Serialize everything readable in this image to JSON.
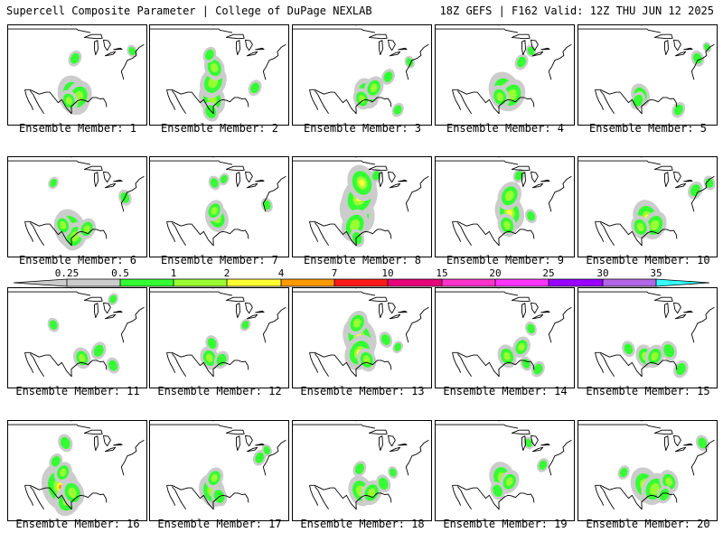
{
  "header": {
    "left": "Supercell Composite Parameter | College of DuPage NEXLAB",
    "right": "18Z GEFS | F162 Valid: 12Z THU JUN 12 2025"
  },
  "legend": {
    "ticks": [
      "0.25",
      "0.5",
      "1",
      "2",
      "4",
      "7",
      "10",
      "15",
      "20",
      "25",
      "30",
      "35"
    ],
    "colors": [
      "#cccccc",
      "#33ff33",
      "#99ff33",
      "#ffff33",
      "#ff9900",
      "#ff1a1a",
      "#e6007a",
      "#ff33cc",
      "#ff33ff",
      "#9900ff",
      "#b366e6",
      "#33ffff"
    ]
  },
  "map_style": {
    "border_color": "#000000",
    "light_color": "#cccccc",
    "low_color": "#33ff33",
    "mid_color": "#99ff33",
    "high_color": "#ffff33",
    "peak_color": "#ff9900"
  },
  "members": [
    {
      "label": "Ensemble Member: 1",
      "blobs": [
        [
          -96.5,
          31,
          2.2
        ],
        [
          -94.5,
          30.5,
          1.8
        ],
        [
          -98.5,
          29.5,
          1.2
        ],
        [
          -96,
          41,
          0.9
        ],
        [
          -72,
          43,
          0.7
        ]
      ]
    },
    {
      "label": "Ensemble Member: 2",
      "blobs": [
        [
          -98,
          30,
          1.8
        ],
        [
          -97.5,
          34.5,
          1.8
        ],
        [
          -97,
          38.5,
          1.4
        ],
        [
          -99,
          42,
          0.9
        ],
        [
          -98.5,
          26.5,
          1.1
        ],
        [
          -80,
          33,
          0.9
        ]
      ]
    },
    {
      "label": "Ensemble Member: 3",
      "blobs": [
        [
          -93,
          31.5,
          1.7
        ],
        [
          -90,
          33,
          1.3
        ],
        [
          -95,
          30,
          1.2
        ],
        [
          -84,
          36,
          0.9
        ],
        [
          -75,
          40,
          0.7
        ],
        [
          -80,
          27,
          0.8
        ]
      ]
    },
    {
      "label": "Ensemble Member: 4",
      "blobs": [
        [
          -95,
          32,
          2.2
        ],
        [
          -92,
          31,
          1.8
        ],
        [
          -97,
          30.5,
          1.3
        ],
        [
          -88,
          40,
          0.9
        ],
        [
          -84,
          43,
          0.7
        ]
      ]
    },
    {
      "label": "Ensemble Member: 5",
      "blobs": [
        [
          -98,
          31,
          1.3
        ],
        [
          -99,
          29.5,
          1.0
        ],
        [
          -74,
          41,
          0.9
        ],
        [
          -82,
          27,
          0.9
        ],
        [
          -70,
          44,
          0.6
        ]
      ]
    },
    {
      "label": "Ensemble Member: 6",
      "blobs": [
        [
          -98,
          30.5,
          2.2
        ],
        [
          -96,
          28.5,
          1.6
        ],
        [
          -101,
          31.5,
          1.2
        ],
        [
          -91,
          30.5,
          1.2
        ],
        [
          -75,
          39,
          0.9
        ],
        [
          -105,
          43,
          0.7
        ]
      ]
    },
    {
      "label": "Ensemble Member: 7",
      "blobs": [
        [
          -96,
          33.5,
          1.6
        ],
        [
          -97,
          35.5,
          1.2
        ],
        [
          -97,
          43,
          0.8
        ],
        [
          -93,
          44,
          0.7
        ],
        [
          -75,
          37,
          0.8
        ]
      ]
    },
    {
      "label": "Ensemble Member: 8",
      "blobs": [
        [
          -97,
          35,
          2.4
        ],
        [
          -96,
          39,
          2.4
        ],
        [
          -95,
          43,
          2.0
        ],
        [
          -98,
          31.5,
          1.8
        ],
        [
          -97,
          28,
          1.0
        ],
        [
          -89,
          45,
          0.8
        ]
      ]
    },
    {
      "label": "Ensemble Member: 9",
      "blobs": [
        [
          -93,
          35,
          2.0
        ],
        [
          -93,
          39.5,
          1.6
        ],
        [
          -94,
          31.5,
          1.3
        ],
        [
          -89,
          45,
          0.8
        ],
        [
          -84,
          34,
          0.8
        ]
      ]
    },
    {
      "label": "Ensemble Member: 10",
      "blobs": [
        [
          -95,
          33.5,
          2.0
        ],
        [
          -92,
          31.5,
          1.6
        ],
        [
          -98,
          31,
          1.3
        ],
        [
          -75,
          41,
          1.0
        ],
        [
          -69,
          43,
          0.8
        ]
      ]
    },
    {
      "label": "Ensemble Member: 11",
      "blobs": [
        [
          -93,
          31,
          1.2
        ],
        [
          -86,
          33,
          1.0
        ],
        [
          -80,
          29,
          0.9
        ],
        [
          -80,
          47,
          0.7
        ],
        [
          -105,
          40,
          0.8
        ]
      ]
    },
    {
      "label": "Ensemble Member: 12",
      "blobs": [
        [
          -99,
          31,
          1.3
        ],
        [
          -94,
          30.5,
          1.0
        ],
        [
          -98,
          35,
          0.9
        ],
        [
          -84,
          40,
          0.7
        ]
      ]
    },
    {
      "label": "Ensemble Member: 13",
      "blobs": [
        [
          -96,
          36.5,
          2.3
        ],
        [
          -96,
          32.5,
          2.0
        ],
        [
          -93,
          30.5,
          1.3
        ],
        [
          -97,
          40.5,
          1.4
        ],
        [
          -85,
          36,
          0.9
        ],
        [
          -80,
          34,
          0.7
        ]
      ]
    },
    {
      "label": "Ensemble Member: 14",
      "blobs": [
        [
          -94,
          31.5,
          1.3
        ],
        [
          -88,
          34,
          1.2
        ],
        [
          -84,
          39,
          0.8
        ],
        [
          -81,
          28,
          0.9
        ],
        [
          -86,
          29.5,
          0.8
        ]
      ]
    },
    {
      "label": "Ensemble Member: 15",
      "blobs": [
        [
          -96,
          31.5,
          1.3
        ],
        [
          -92,
          31.5,
          1.3
        ],
        [
          -86,
          33,
          1.1
        ],
        [
          -81,
          28,
          1.0
        ],
        [
          -103,
          33.5,
          0.9
        ]
      ]
    },
    {
      "label": "Ensemble Member: 16",
      "blobs": [
        [
          -102,
          32,
          2.6
        ],
        [
          -99,
          28.5,
          1.8
        ],
        [
          -97,
          30.5,
          1.6
        ],
        [
          -101,
          36,
          1.2
        ],
        [
          -100,
          44,
          1.0
        ],
        [
          -104,
          39,
          0.9
        ]
      ]
    },
    {
      "label": "Ensemble Member: 17",
      "blobs": [
        [
          -98,
          31,
          1.8
        ],
        [
          -97,
          34.5,
          1.2
        ],
        [
          -95,
          29.5,
          1.1
        ],
        [
          -78,
          40,
          0.9
        ],
        [
          -75,
          42,
          0.7
        ]
      ]
    },
    {
      "label": "Ensemble Member: 18",
      "blobs": [
        [
          -95.5,
          31,
          1.7
        ],
        [
          -91,
          30.5,
          1.4
        ],
        [
          -86,
          33,
          1.0
        ],
        [
          -96,
          37,
          0.9
        ],
        [
          -82,
          36,
          0.7
        ]
      ]
    },
    {
      "label": "Ensemble Member: 19",
      "blobs": [
        [
          -96,
          34.5,
          1.8
        ],
        [
          -93,
          33.5,
          1.3
        ],
        [
          -98,
          31,
          1.0
        ],
        [
          -79,
          38,
          0.8
        ],
        [
          -85,
          44,
          0.7
        ]
      ]
    },
    {
      "label": "Ensemble Member: 20",
      "blobs": [
        [
          -96,
          32.5,
          2.0
        ],
        [
          -92,
          31.5,
          1.8
        ],
        [
          -86,
          33.5,
          1.3
        ],
        [
          -88,
          30,
          1.0
        ],
        [
          -72,
          44,
          0.9
        ],
        [
          -105,
          36,
          0.8
        ]
      ]
    }
  ]
}
